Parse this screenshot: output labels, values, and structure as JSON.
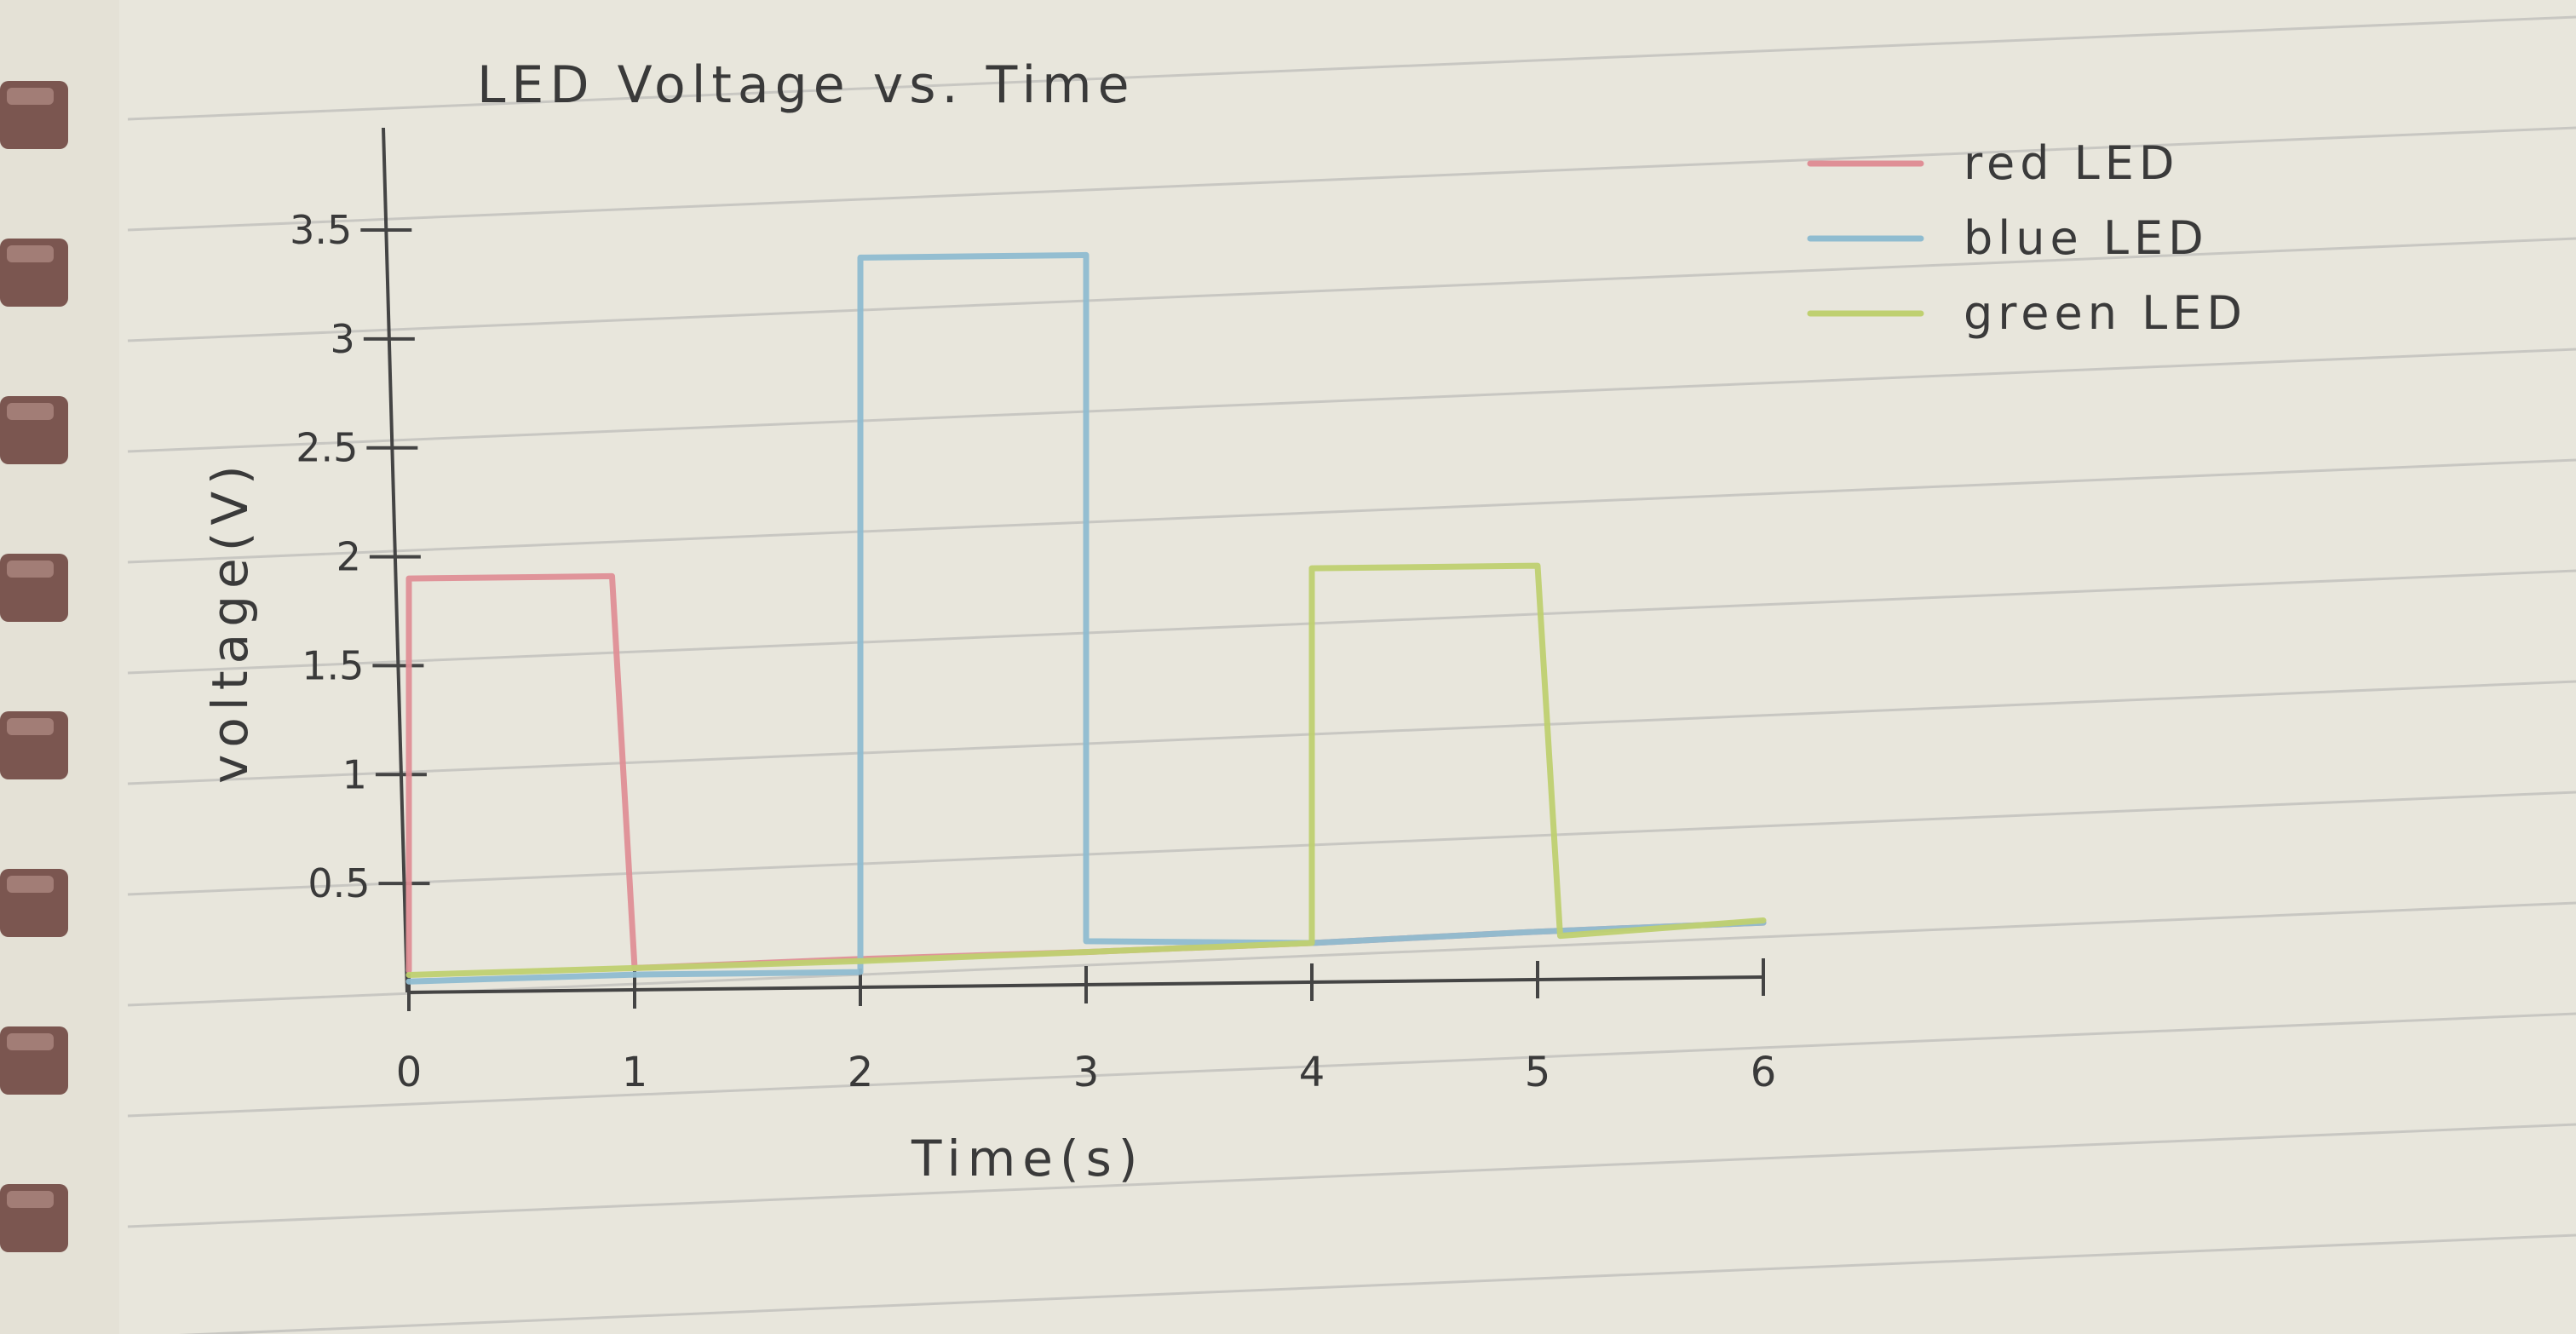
{
  "chart_data": {
    "type": "line",
    "title": "LED Voltage vs. Time",
    "xlabel": "Time(s)",
    "ylabel": "voltage(V)",
    "xlim": [
      0,
      6
    ],
    "ylim": [
      0,
      3.9
    ],
    "x_ticks": [
      "0",
      "1",
      "2",
      "3",
      "4",
      "5",
      "6"
    ],
    "y_ticks": [
      "0.5",
      "1",
      "1.5",
      "2",
      "2.5",
      "3",
      "3.5"
    ],
    "grid": false,
    "legend_position": "top-right",
    "series": [
      {
        "name": "red LED",
        "color": "#df8f96",
        "x": [
          0,
          0,
          0.9,
          1,
          2,
          3,
          4,
          5,
          6
        ],
        "y": [
          0.1,
          1.9,
          1.9,
          0.1,
          0.13,
          0.15,
          0.18,
          0.22,
          0.25
        ]
      },
      {
        "name": "blue LED",
        "color": "#8fbcd0",
        "x": [
          0,
          1,
          2,
          2,
          3,
          3,
          4,
          5,
          6
        ],
        "y": [
          0.05,
          0.07,
          0.07,
          3.35,
          3.35,
          0.2,
          0.18,
          0.22,
          0.25
        ]
      },
      {
        "name": "green LED",
        "color": "#bfd070",
        "x": [
          0,
          1,
          2,
          3,
          4,
          4,
          5,
          5.1,
          6
        ],
        "y": [
          0.08,
          0.1,
          0.12,
          0.15,
          0.18,
          1.9,
          1.9,
          0.2,
          0.26
        ]
      }
    ]
  }
}
